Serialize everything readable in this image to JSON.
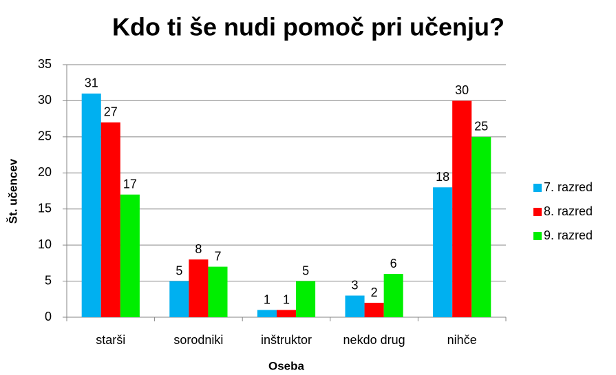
{
  "chart_data": {
    "type": "bar",
    "title": "Kdo ti še nudi pomoč pri učenju?",
    "y_label": "Št. učencev",
    "x_label": "Oseba",
    "categories": [
      "starši",
      "sorodniki",
      "inštruktor",
      "nekdo drug",
      "nihče"
    ],
    "series": [
      {
        "name": "7. razred",
        "color": "#00b0f0",
        "values": [
          31,
          5,
          1,
          3,
          18
        ]
      },
      {
        "name": "8. razred",
        "color": "#ff0000",
        "values": [
          27,
          8,
          1,
          2,
          30
        ]
      },
      {
        "name": "9. razred",
        "color": "#00ee00",
        "values": [
          17,
          7,
          5,
          6,
          25
        ]
      }
    ],
    "ylim": [
      0,
      35
    ],
    "yticks": [
      0,
      5,
      10,
      15,
      20,
      25,
      30,
      35
    ],
    "grid": true,
    "legend": "right"
  }
}
